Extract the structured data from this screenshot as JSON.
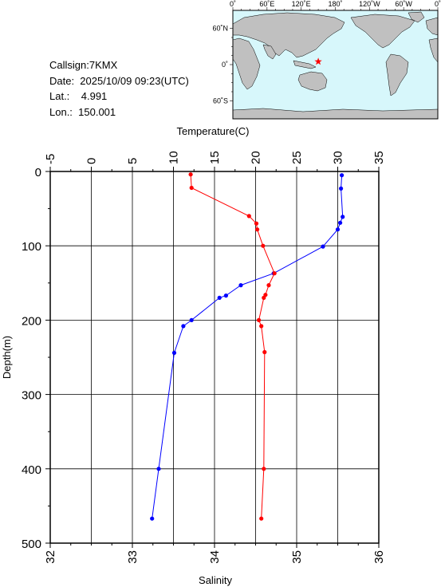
{
  "info": {
    "callsign": "Callsign:7KMX",
    "date": "Date:  2025/10/09 09:23(UTC)",
    "lat": "Lat.:    4.991",
    "lon": "Lon.:  150.001"
  },
  "map": {
    "top_labels": [
      "0˚",
      "60˚E",
      "120˚E",
      "180˚",
      "120˚W",
      "60˚W",
      "0˚"
    ],
    "left_labels": [
      "60˚N",
      "0˚",
      "60˚S"
    ],
    "ocean_color": "#d7f7fb",
    "land_color": "#c0c0c0",
    "marker_color": "#ff0000",
    "marker_lat": 4.991,
    "marker_lon": 150.001
  },
  "chart_data": {
    "type": "line",
    "xlabel_top": "Temperature(C)",
    "xlabel_bottom": "Salinity",
    "ylabel": "Depth(m)",
    "temperature_ticks": [
      "-5",
      "0",
      "5",
      "10",
      "15",
      "20",
      "25",
      "30",
      "35"
    ],
    "salinity_ticks": [
      "32",
      "33",
      "34",
      "35",
      "36"
    ],
    "depth_ticks": [
      "0",
      "100",
      "200",
      "300",
      "400",
      "500"
    ],
    "temperature_range": [
      -5,
      35
    ],
    "salinity_range": [
      32,
      36
    ],
    "depth_range": [
      0,
      500
    ],
    "grid": true,
    "series": [
      {
        "name": "Temperature(C)",
        "color": "#0000ff",
        "points": [
          {
            "x": 30.5,
            "depth": 5
          },
          {
            "x": 30.4,
            "depth": 23
          },
          {
            "x": 30.6,
            "depth": 61
          },
          {
            "x": 30.3,
            "depth": 69
          },
          {
            "x": 30.0,
            "depth": 78
          },
          {
            "x": 28.2,
            "depth": 101
          },
          {
            "x": 22.2,
            "depth": 137
          },
          {
            "x": 18.2,
            "depth": 153
          },
          {
            "x": 16.4,
            "depth": 167
          },
          {
            "x": 15.6,
            "depth": 170
          },
          {
            "x": 12.2,
            "depth": 200
          },
          {
            "x": 11.2,
            "depth": 208
          },
          {
            "x": 10.1,
            "depth": 244
          },
          {
            "x": 8.2,
            "depth": 400
          },
          {
            "x": 7.4,
            "depth": 467
          }
        ]
      },
      {
        "name": "Salinity",
        "color": "#ff0000",
        "points": [
          {
            "x": 33.71,
            "depth": 4
          },
          {
            "x": 33.72,
            "depth": 22
          },
          {
            "x": 34.42,
            "depth": 60
          },
          {
            "x": 34.51,
            "depth": 70
          },
          {
            "x": 34.52,
            "depth": 78
          },
          {
            "x": 34.59,
            "depth": 100
          },
          {
            "x": 34.73,
            "depth": 137
          },
          {
            "x": 34.66,
            "depth": 153
          },
          {
            "x": 34.62,
            "depth": 166
          },
          {
            "x": 34.6,
            "depth": 170
          },
          {
            "x": 34.54,
            "depth": 200
          },
          {
            "x": 34.57,
            "depth": 208
          },
          {
            "x": 34.61,
            "depth": 243
          },
          {
            "x": 34.6,
            "depth": 400
          },
          {
            "x": 34.57,
            "depth": 467
          }
        ]
      }
    ]
  }
}
